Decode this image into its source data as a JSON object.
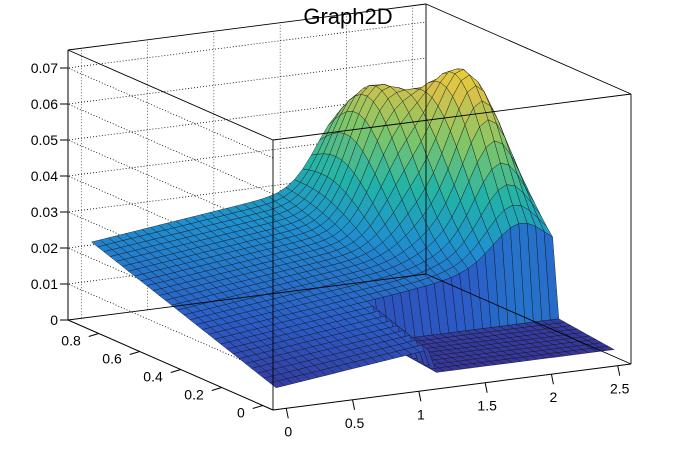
{
  "chart_data": {
    "type": "surface",
    "title": "Graph2D",
    "x_range": [
      -0.1,
      2.6
    ],
    "y_range": [
      -0.05,
      0.95
    ],
    "z_range": [
      0,
      0.075
    ],
    "x_ticks": [
      {
        "v": 0,
        "label": "0"
      },
      {
        "v": 0.5,
        "label": "0.5"
      },
      {
        "v": 1,
        "label": "1"
      },
      {
        "v": 1.5,
        "label": "1.5"
      },
      {
        "v": 2,
        "label": "2"
      },
      {
        "v": 2.5,
        "label": "2.5"
      }
    ],
    "y_ticks": [
      {
        "v": 0,
        "label": "0"
      },
      {
        "v": 0.2,
        "label": "0.2"
      },
      {
        "v": 0.4,
        "label": "0.4"
      },
      {
        "v": 0.6,
        "label": "0.6"
      },
      {
        "v": 0.8,
        "label": "0.8"
      }
    ],
    "z_ticks": [
      {
        "v": 0,
        "label": "0"
      },
      {
        "v": 0.01,
        "label": "0.01"
      },
      {
        "v": 0.02,
        "label": "0.02"
      },
      {
        "v": 0.03,
        "label": "0.03"
      },
      {
        "v": 0.04,
        "label": "0.04"
      },
      {
        "v": 0.05,
        "label": "0.05"
      },
      {
        "v": 0.06,
        "label": "0.06"
      },
      {
        "v": 0.07,
        "label": "0.07"
      }
    ],
    "grid": true,
    "colormap": [
      "#3a2a8c",
      "#2b5cc8",
      "#1f8fcf",
      "#22b3a8",
      "#7ec66a",
      "#d8c24a",
      "#f9e225"
    ],
    "surface_features": {
      "base_slope_along_y": 0.02,
      "peaks": [
        {
          "x": 1.9,
          "y": 0.75,
          "z": 0.06
        },
        {
          "x": 2.3,
          "y": 0.55,
          "z": 0.07
        }
      ],
      "step_edge_x": 1.2,
      "step_edge_y": 0.3
    }
  }
}
